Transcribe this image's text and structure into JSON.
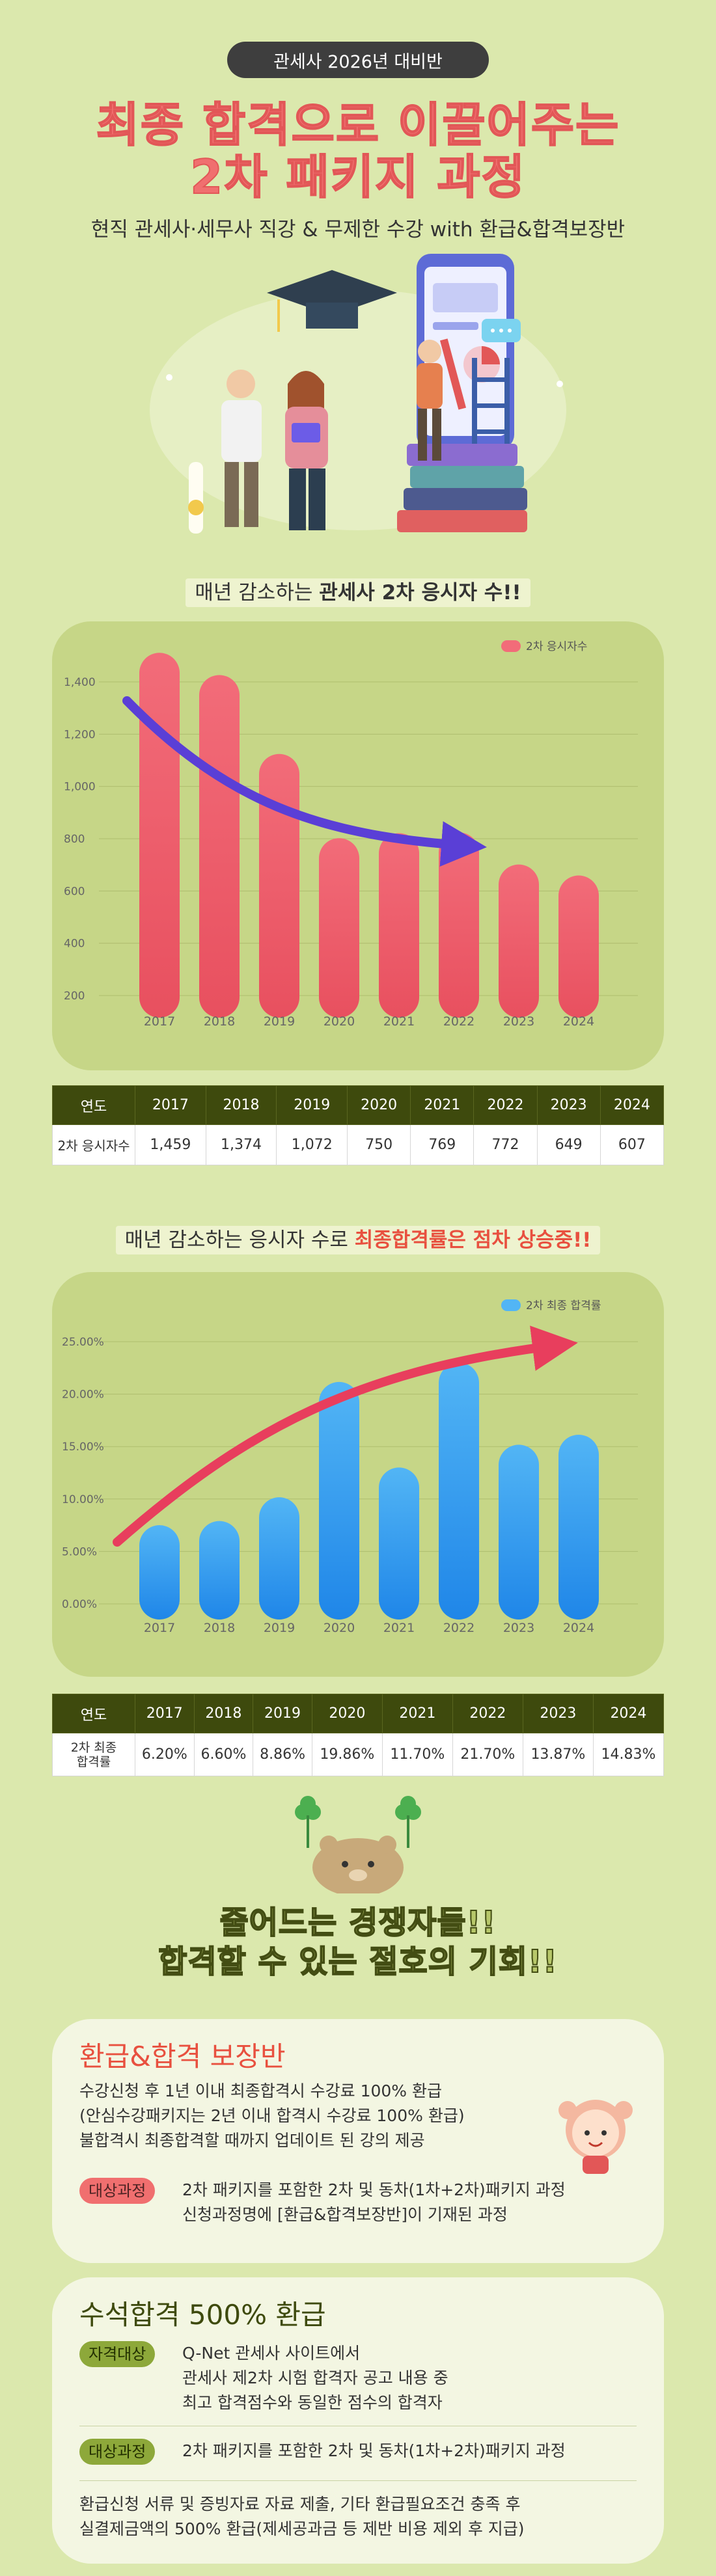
{
  "header": {
    "badge": "관세사 2026년 대비반",
    "title_line1": "최종 합격으로 이끌어주는",
    "title_line2": "2차 패키지 과정",
    "subtitle": "현직 관세사·세무사 직강 & 무제한 수강 with 환급&합격보장반"
  },
  "section1": {
    "label_prefix": "매년 감소하는 ",
    "label_bold": "관세사 2차 응시자 수!!"
  },
  "section2": {
    "label_prefix": "매년 감소하는 응시자 수로 ",
    "label_red": "최종합격률은 점차 상승중!!"
  },
  "chart_data": [
    {
      "type": "bar",
      "categories": [
        "2017",
        "2018",
        "2019",
        "2020",
        "2021",
        "2022",
        "2023",
        "2024"
      ],
      "series": [
        {
          "name": "2차 응시자수",
          "values": [
            1459,
            1374,
            1072,
            750,
            769,
            772,
            649,
            607
          ]
        }
      ],
      "yticks": [
        "1,400",
        "1,200",
        "1,000",
        "800",
        "600",
        "400",
        "200"
      ],
      "ylim": [
        200,
        1400
      ],
      "legend_position": "top-right",
      "grid": true,
      "trend_arrow": "decreasing",
      "color": "#ef6a78"
    },
    {
      "type": "bar",
      "categories": [
        "2017",
        "2018",
        "2019",
        "2020",
        "2021",
        "2022",
        "2023",
        "2024"
      ],
      "series": [
        {
          "name": "2차 최종 합격률",
          "values": [
            6.2,
            6.6,
            8.86,
            19.86,
            11.7,
            21.7,
            13.87,
            14.83
          ]
        }
      ],
      "yticks": [
        "25.00%",
        "20.00%",
        "15.00%",
        "10.00%",
        "5.00%",
        "0.00%"
      ],
      "ylim": [
        0,
        25
      ],
      "legend_position": "top-right",
      "grid": true,
      "trend_arrow": "increasing",
      "color": "#3aa3f0"
    }
  ],
  "table1": {
    "head": [
      "연도",
      "2017",
      "2018",
      "2019",
      "2020",
      "2021",
      "2022",
      "2023",
      "2024"
    ],
    "row": [
      "2차 응시자수",
      "1,459",
      "1,374",
      "1,072",
      "750",
      "769",
      "772",
      "649",
      "607"
    ]
  },
  "table2": {
    "head": [
      "연도",
      "2017",
      "2018",
      "2019",
      "2020",
      "2021",
      "2022",
      "2023",
      "2024"
    ],
    "row_label_line1": "2차 최종",
    "row_label_line2": "합격률",
    "row": [
      "6.20%",
      "6.60%",
      "8.86%",
      "19.86%",
      "11.70%",
      "21.70%",
      "13.87%",
      "14.83%"
    ]
  },
  "crowd": {
    "line1": "줄어드는 경쟁자들!!",
    "line2": "합격할 수 있는 절호의 기회!!"
  },
  "refund_card": {
    "title": "환급&합격 보장반",
    "lines": [
      "수강신청 후 1년 이내 최종합격시 수강료 100% 환급",
      "(안심수강패키지는 2년 이내 합격시 수강료 100% 환급)",
      "불합격시 최종합격할 때까지 업데이트 된 강의 제공"
    ],
    "tag": "대상과정",
    "target_lines": [
      "2차 패키지를 포함한 2차 및 동차(1차+2차)패키지 과정",
      "신청과정명에 [환급&합격보장반]이 기재된 과정"
    ]
  },
  "top_card": {
    "title": "수석합격 500% 환급",
    "tag1": "자격대상",
    "qual_lines": [
      "Q-Net 관세사 사이트에서",
      "관세사 제2차 시험 합격자 공고 내용 중",
      "최고 합격점수와 동일한 점수의 합격자"
    ],
    "tag2": "대상과정",
    "target": "2차 패키지를 포함한 2차 및 동차(1차+2차)패키지 과정",
    "footer_lines": [
      "환급신청 서류 및 증빙자료 자료 제출, 기타 환급필요조건 충족 후",
      "실결제금액의 500% 환급(제세공과금 등 제반 비용 제외 후 지급)"
    ]
  },
  "colors": {
    "bg": "#dbe8ad",
    "accent_red": "#f06f6f",
    "bar_red": "#ef6a78",
    "bar_blue": "#3aa3f0",
    "table_head": "#3e4a0d"
  }
}
